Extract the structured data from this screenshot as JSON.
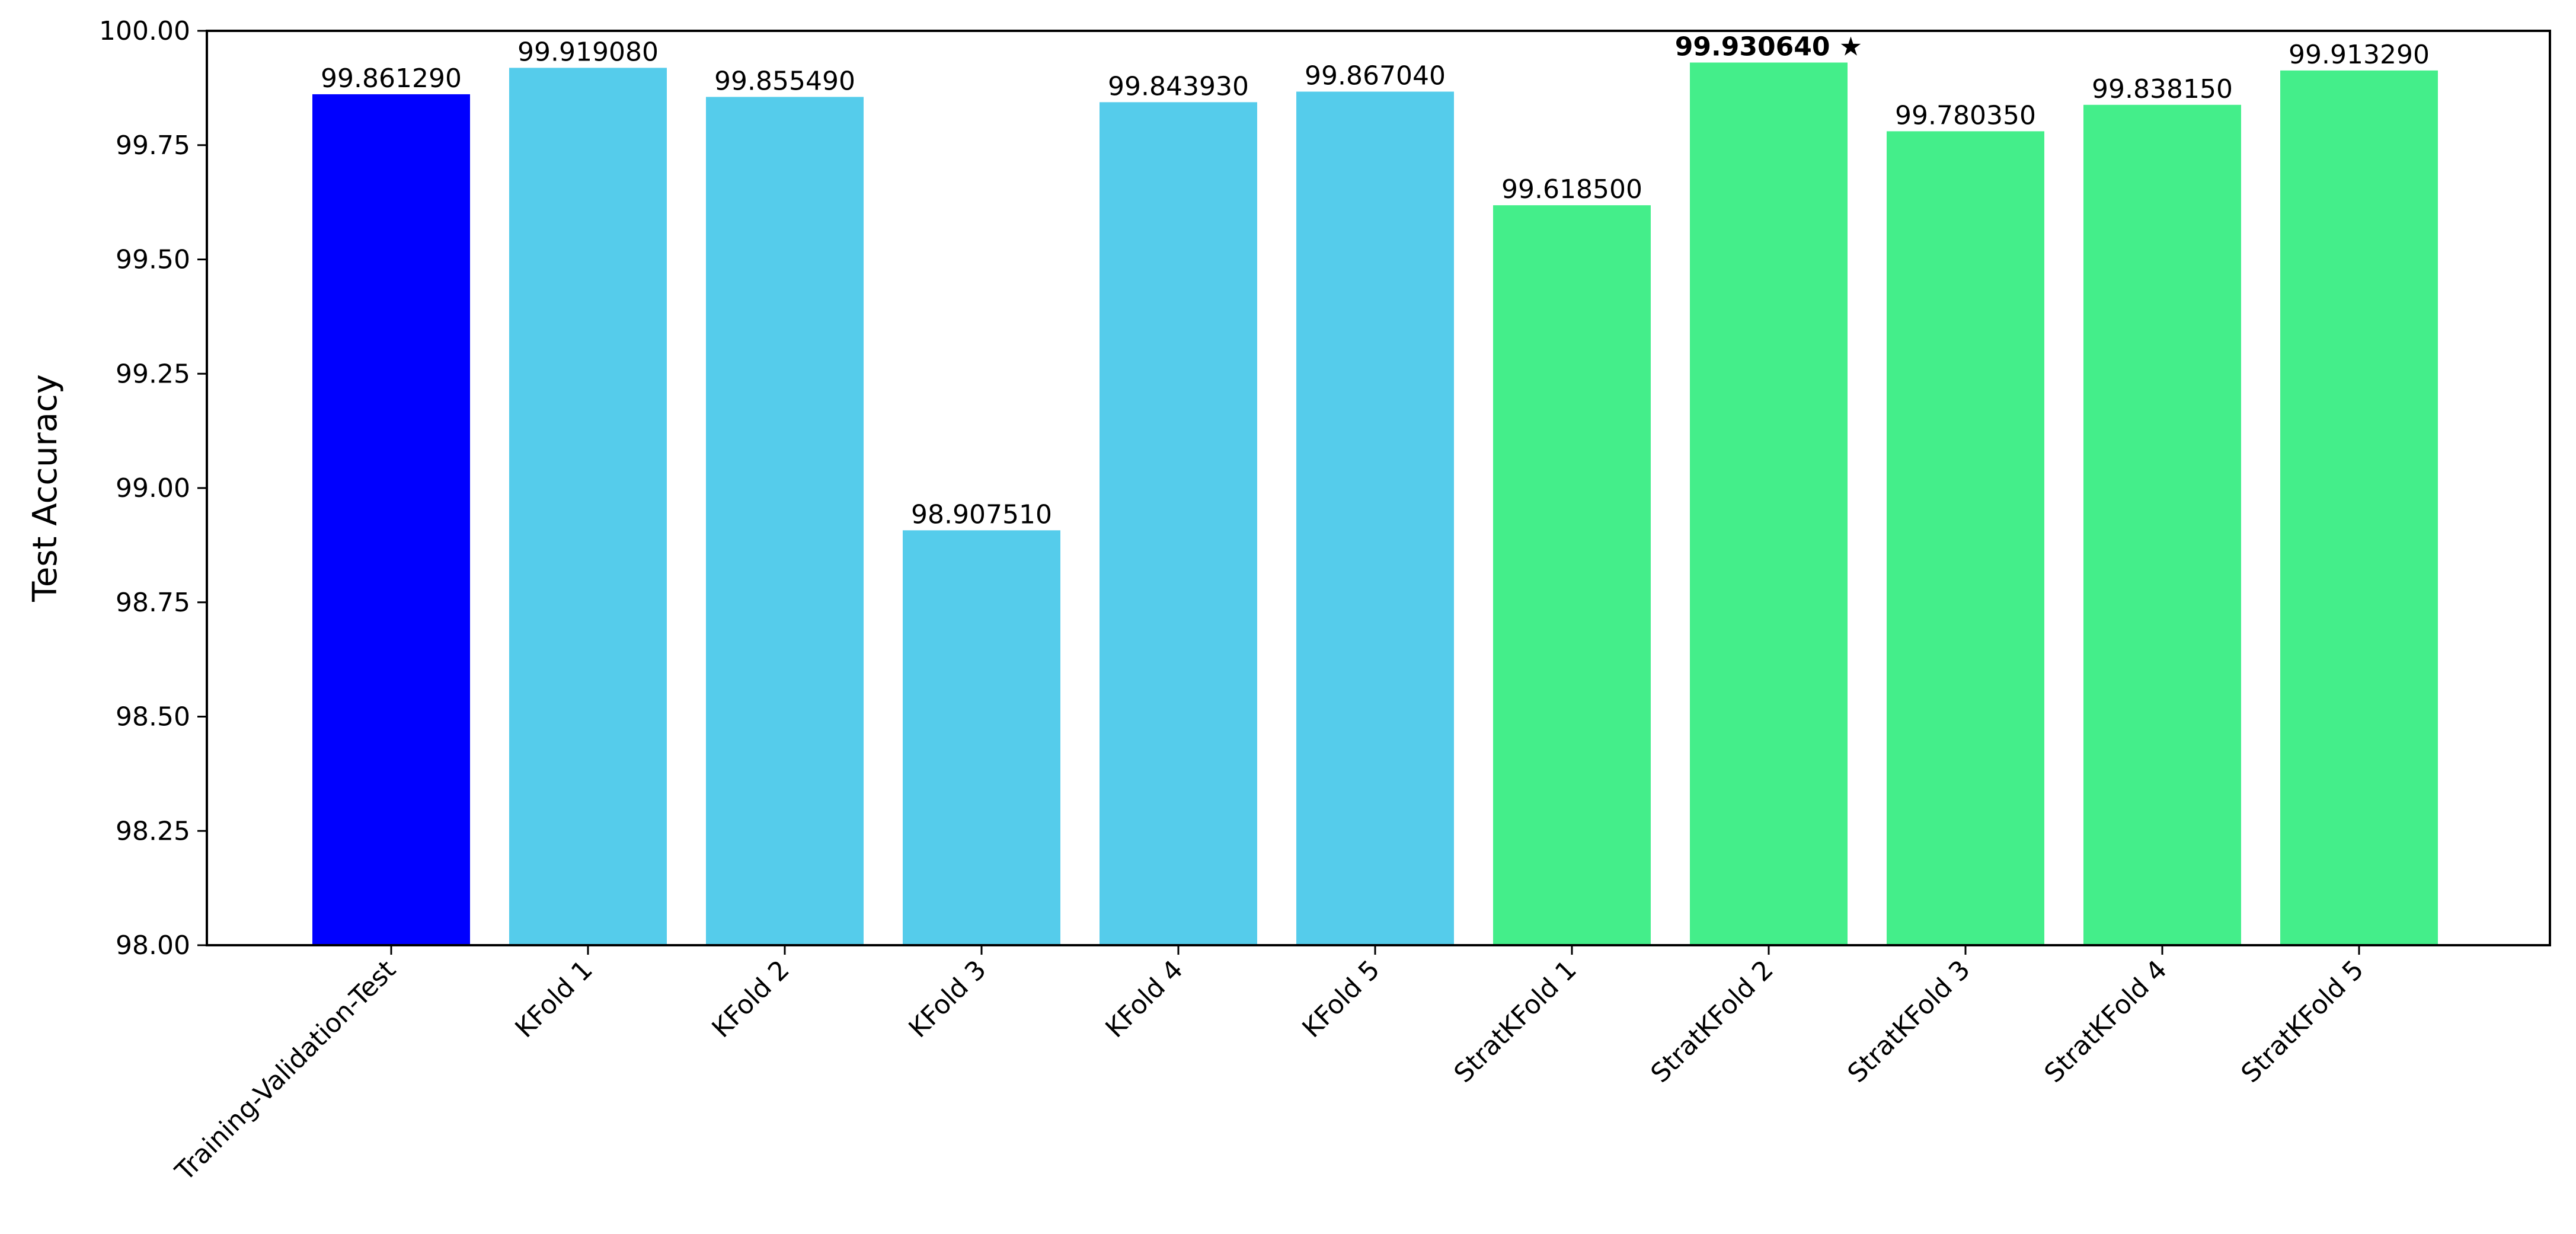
{
  "chart_data": {
    "type": "bar",
    "ylabel": "Test Accuracy",
    "ylim": [
      98.0,
      100.0
    ],
    "yticks": [
      "98.00",
      "98.25",
      "98.50",
      "98.75",
      "99.00",
      "99.25",
      "99.50",
      "99.75",
      "100.00"
    ],
    "grid": false,
    "categories": [
      "Training-Validation-Test",
      "KFold 1",
      "KFold 2",
      "KFold 3",
      "KFold 4",
      "KFold 5",
      "StratKFold 1",
      "StratKFold 2",
      "StratKFold 3",
      "StratKFold 4",
      "StratKFold 5"
    ],
    "values": [
      99.86129,
      99.91908,
      99.85549,
      98.90751,
      99.84393,
      99.86704,
      99.6185,
      99.93064,
      99.78035,
      99.83815,
      99.91329
    ],
    "data_labels": [
      "99.861290",
      "99.919080",
      "99.855490",
      "98.907510",
      "99.843930",
      "99.867040",
      "99.618500",
      "99.930640 ★",
      "99.780350",
      "99.838150",
      "99.913290"
    ],
    "highlight_index": 7,
    "colors": [
      "#0000ff",
      "#55cceb",
      "#55cceb",
      "#55cceb",
      "#55cceb",
      "#55cceb",
      "#44ee8a",
      "#44ee8a",
      "#44ee8a",
      "#44ee8a",
      "#44ee8a"
    ]
  }
}
